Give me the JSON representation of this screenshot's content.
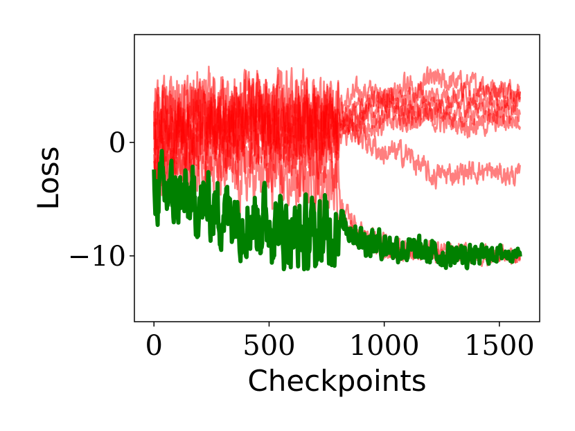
{
  "chart_data": {
    "type": "line",
    "title": "",
    "xlabel": "Checkpoints",
    "ylabel": "Loss",
    "xlim": [
      -85,
      1675
    ],
    "ylim": [
      -15.8,
      9.5
    ],
    "xticks": [
      0,
      500,
      1000,
      1500
    ],
    "xtick_labels": [
      "0",
      "500",
      "1000",
      "1500"
    ],
    "yticks": [
      0,
      -10
    ],
    "ytick_labels": [
      "0",
      "−10"
    ],
    "grid": false,
    "legend": "none",
    "colors": {
      "red_series": "#ff0000",
      "green_series": "#008000"
    },
    "series": [
      {
        "color": "#ff0000",
        "opacity": 0.5,
        "linewidth": 2.5,
        "points": [
          [
            0,
            2
          ],
          [
            200,
            3
          ],
          [
            400,
            2.5
          ],
          [
            600,
            2
          ],
          [
            800,
            3
          ],
          [
            900,
            4.5
          ],
          [
            1000,
            4
          ],
          [
            1100,
            3.5
          ],
          [
            1200,
            5.5
          ],
          [
            1400,
            5
          ],
          [
            1590,
            4.5
          ]
        ],
        "noise": [
          [
            0,
            3.5
          ],
          [
            800,
            3.5
          ],
          [
            801,
            1.3
          ],
          [
            1590,
            1.0
          ]
        ]
      },
      {
        "color": "#ff0000",
        "opacity": 0.5,
        "linewidth": 2.5,
        "points": [
          [
            0,
            0
          ],
          [
            200,
            1
          ],
          [
            400,
            1.5
          ],
          [
            600,
            1
          ],
          [
            800,
            1
          ],
          [
            900,
            3
          ],
          [
            1000,
            3.5
          ],
          [
            1100,
            3
          ],
          [
            1200,
            3
          ],
          [
            1400,
            3.5
          ],
          [
            1590,
            3.5
          ]
        ],
        "noise": [
          [
            0,
            3.5
          ],
          [
            800,
            3.5
          ],
          [
            801,
            1.3
          ],
          [
            1590,
            1.0
          ]
        ]
      },
      {
        "color": "#ff0000",
        "opacity": 0.5,
        "linewidth": 2.5,
        "points": [
          [
            0,
            1
          ],
          [
            200,
            1.5
          ],
          [
            400,
            2
          ],
          [
            600,
            1.5
          ],
          [
            800,
            2
          ],
          [
            900,
            2
          ],
          [
            1000,
            2.5
          ],
          [
            1100,
            2.5
          ],
          [
            1200,
            2.5
          ],
          [
            1400,
            2.5
          ],
          [
            1590,
            2.5
          ]
        ],
        "noise": [
          [
            0,
            3.5
          ],
          [
            800,
            3.5
          ],
          [
            801,
            1.3
          ],
          [
            1590,
            1.0
          ]
        ]
      },
      {
        "color": "#ff0000",
        "opacity": 0.5,
        "linewidth": 2.5,
        "points": [
          [
            0,
            -1
          ],
          [
            200,
            0
          ],
          [
            400,
            0.5
          ],
          [
            600,
            0
          ],
          [
            800,
            0
          ],
          [
            900,
            1.5
          ],
          [
            1000,
            1.5
          ],
          [
            1100,
            2
          ],
          [
            1200,
            2
          ],
          [
            1400,
            1.5
          ],
          [
            1590,
            2
          ]
        ],
        "noise": [
          [
            0,
            3.5
          ],
          [
            800,
            3.5
          ],
          [
            801,
            1.3
          ],
          [
            1590,
            1.0
          ]
        ]
      },
      {
        "color": "#ff0000",
        "opacity": 0.5,
        "linewidth": 2.5,
        "points": [
          [
            0,
            2.5
          ],
          [
            200,
            2
          ],
          [
            400,
            3
          ],
          [
            600,
            2.5
          ],
          [
            800,
            2
          ],
          [
            900,
            3
          ],
          [
            1000,
            4
          ],
          [
            1100,
            5
          ],
          [
            1200,
            4
          ],
          [
            1400,
            4.5
          ],
          [
            1590,
            4
          ]
        ],
        "noise": [
          [
            0,
            3.5
          ],
          [
            800,
            3.5
          ],
          [
            801,
            1.3
          ],
          [
            1590,
            1.0
          ]
        ]
      },
      {
        "color": "#ff0000",
        "opacity": 0.5,
        "linewidth": 2.5,
        "points": [
          [
            0,
            1.5
          ],
          [
            200,
            2.5
          ],
          [
            400,
            2
          ],
          [
            600,
            3
          ],
          [
            800,
            2.5
          ],
          [
            900,
            0.5
          ],
          [
            1000,
            -1
          ],
          [
            1100,
            -1
          ],
          [
            1200,
            -3
          ],
          [
            1400,
            -2.5
          ],
          [
            1590,
            -3
          ]
        ],
        "noise": [
          [
            0,
            3.5
          ],
          [
            800,
            3.5
          ],
          [
            801,
            1.3
          ],
          [
            1590,
            1.0
          ]
        ]
      },
      {
        "color": "#ff0000",
        "opacity": 0.5,
        "linewidth": 2.5,
        "points": [
          [
            0,
            -2
          ],
          [
            200,
            -1.5
          ],
          [
            400,
            -1
          ],
          [
            600,
            -1.5
          ],
          [
            800,
            -2
          ],
          [
            810,
            -5.5
          ],
          [
            900,
            -8
          ],
          [
            1000,
            -9
          ],
          [
            1100,
            -9.2
          ],
          [
            1200,
            -9.5
          ],
          [
            1400,
            -9.6
          ],
          [
            1590,
            -9.8
          ]
        ],
        "noise": [
          [
            0,
            3.0
          ],
          [
            800,
            3.0
          ],
          [
            801,
            1.0
          ],
          [
            1590,
            0.7
          ]
        ]
      },
      {
        "color": "#ff0000",
        "opacity": 0.5,
        "linewidth": 2.5,
        "points": [
          [
            0,
            -3
          ],
          [
            200,
            -2.5
          ],
          [
            400,
            -3
          ],
          [
            600,
            -3.5
          ],
          [
            800,
            -4
          ],
          [
            810,
            -6.5
          ],
          [
            900,
            -8.5
          ],
          [
            1000,
            -9.5
          ],
          [
            1100,
            -9.8
          ],
          [
            1200,
            -10
          ],
          [
            1400,
            -10
          ],
          [
            1590,
            -10.2
          ]
        ],
        "noise": [
          [
            0,
            3.0
          ],
          [
            800,
            3.0
          ],
          [
            801,
            1.0
          ],
          [
            1590,
            0.7
          ]
        ]
      },
      {
        "color": "#008000",
        "opacity": 1,
        "linewidth": 6,
        "points": [
          [
            0,
            -4
          ],
          [
            100,
            -5
          ],
          [
            200,
            -5.5
          ],
          [
            300,
            -6
          ],
          [
            400,
            -6.5
          ],
          [
            500,
            -7
          ],
          [
            600,
            -8
          ],
          [
            700,
            -8.5
          ],
          [
            800,
            -7
          ],
          [
            850,
            -7.5
          ],
          [
            900,
            -8.5
          ],
          [
            1000,
            -9
          ],
          [
            1100,
            -9.5
          ],
          [
            1200,
            -9.8
          ],
          [
            1300,
            -10
          ],
          [
            1400,
            -10
          ],
          [
            1500,
            -9.8
          ],
          [
            1590,
            -9.8
          ]
        ],
        "noise": [
          [
            0,
            3.0
          ],
          [
            800,
            3.5
          ],
          [
            801,
            1.4
          ],
          [
            1300,
            1.2
          ],
          [
            1590,
            0.5
          ]
        ]
      }
    ]
  }
}
